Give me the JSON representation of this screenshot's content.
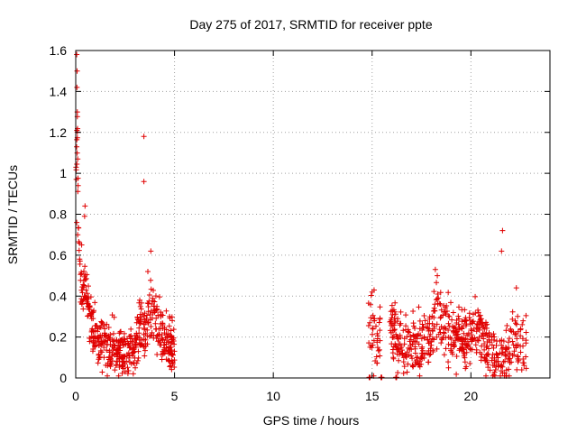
{
  "chart_data": {
    "type": "scatter",
    "title": "Day 275 of 2017, SRMTID for receiver ppte",
    "xlabel": "GPS time / hours",
    "ylabel": "SRMTID / TECUs",
    "xlim": [
      0,
      24
    ],
    "ylim": [
      0,
      1.6
    ],
    "xticks": [
      0,
      5,
      10,
      15,
      20
    ],
    "xtick_labels": [
      "0",
      "5",
      "10",
      "15",
      "20"
    ],
    "yticks": [
      0,
      0.2,
      0.4,
      0.6,
      0.8,
      1,
      1.2,
      1.4,
      1.6
    ],
    "ytick_labels": [
      "0",
      "0.2",
      "0.4",
      "0.6",
      "0.8",
      "1",
      "1.2",
      "1.4",
      "1.6"
    ],
    "grid": true,
    "marker": "+",
    "series": [
      {
        "name": "SRMTID",
        "color": "#e00000",
        "segments": [
          {
            "start": 0.0,
            "end": 5.0,
            "base": [
              [
                0.0,
                0.9
              ],
              [
                0.08,
                1.2
              ],
              [
                0.15,
                0.6
              ],
              [
                0.3,
                0.45
              ],
              [
                0.5,
                0.4
              ],
              [
                0.7,
                0.3
              ],
              [
                0.9,
                0.25
              ],
              [
                1.2,
                0.18
              ],
              [
                1.6,
                0.15
              ],
              [
                2.0,
                0.14
              ],
              [
                2.5,
                0.12
              ],
              [
                3.0,
                0.15
              ],
              [
                3.3,
                0.25
              ],
              [
                3.6,
                0.25
              ],
              [
                3.9,
                0.35
              ],
              [
                4.2,
                0.25
              ],
              [
                4.6,
                0.18
              ],
              [
                5.0,
                0.12
              ]
            ],
            "spread": 0.08,
            "n": 520
          },
          {
            "start": 14.8,
            "end": 15.4,
            "base": [
              [
                14.8,
                0.3
              ],
              [
                15.0,
                0.25
              ],
              [
                15.2,
                0.15
              ],
              [
                15.4,
                0.2
              ]
            ],
            "spread": 0.1,
            "n": 40
          },
          {
            "start": 15.9,
            "end": 22.8,
            "base": [
              [
                15.9,
                0.3
              ],
              [
                16.3,
                0.18
              ],
              [
                17.0,
                0.17
              ],
              [
                17.5,
                0.15
              ],
              [
                18.0,
                0.22
              ],
              [
                18.2,
                0.35
              ],
              [
                18.6,
                0.25
              ],
              [
                19.2,
                0.22
              ],
              [
                19.7,
                0.18
              ],
              [
                20.2,
                0.25
              ],
              [
                20.6,
                0.22
              ],
              [
                21.0,
                0.1
              ],
              [
                21.4,
                0.12
              ],
              [
                21.8,
                0.1
              ],
              [
                22.2,
                0.18
              ],
              [
                22.6,
                0.15
              ]
            ],
            "spread": 0.09,
            "n": 560
          }
        ],
        "outliers": [
          {
            "x": 0.05,
            "y": 1.58
          },
          {
            "x": 0.07,
            "y": 1.5
          },
          {
            "x": 0.06,
            "y": 1.42
          },
          {
            "x": 0.08,
            "y": 1.3
          },
          {
            "x": 0.06,
            "y": 1.21
          },
          {
            "x": 0.1,
            "y": 1.07
          },
          {
            "x": 0.12,
            "y": 0.94
          },
          {
            "x": 0.05,
            "y": 0.76
          },
          {
            "x": 0.1,
            "y": 0.7
          },
          {
            "x": 0.47,
            "y": 0.84
          },
          {
            "x": 0.45,
            "y": 0.79
          },
          {
            "x": 0.3,
            "y": 0.65
          },
          {
            "x": 3.45,
            "y": 1.18
          },
          {
            "x": 3.45,
            "y": 0.96
          },
          {
            "x": 3.8,
            "y": 0.62
          },
          {
            "x": 3.65,
            "y": 0.52
          },
          {
            "x": 21.6,
            "y": 0.72
          },
          {
            "x": 21.55,
            "y": 0.62
          },
          {
            "x": 18.2,
            "y": 0.53
          },
          {
            "x": 18.3,
            "y": 0.5
          },
          {
            "x": 22.3,
            "y": 0.44
          },
          {
            "x": 15.1,
            "y": 0.43
          },
          {
            "x": 15.0,
            "y": 0.42
          }
        ],
        "baseline_clusters": [
          {
            "x": 14.85,
            "y": 0.0
          },
          {
            "x": 15.45,
            "y": 0.0
          },
          {
            "x": 16.2,
            "y": 0.0
          }
        ]
      }
    ]
  }
}
